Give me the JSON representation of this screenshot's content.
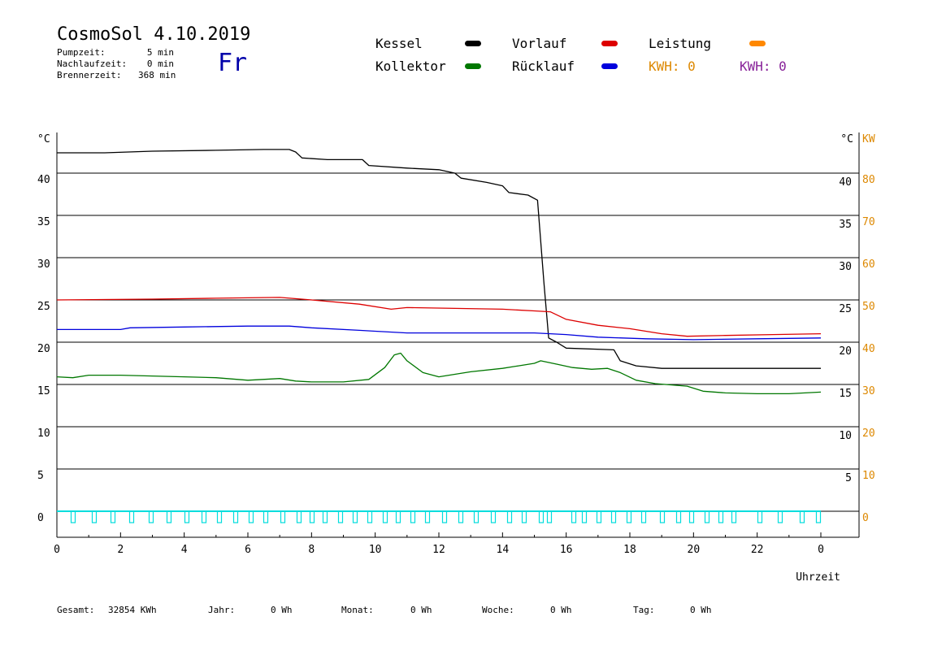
{
  "header": {
    "title": "CosmoSol 4.10.2019",
    "day": "Fr",
    "info": [
      {
        "label": "Pumpzeit:",
        "value": "5 min"
      },
      {
        "label": "Nachlaufzeit:",
        "value": "0 min"
      },
      {
        "label": "Brennerzeit:",
        "value": "368 min"
      }
    ]
  },
  "legend": {
    "kessel": "Kessel",
    "vorlauf": "Vorlauf",
    "leistung": "Leistung",
    "kollektor": "Kollektor",
    "ruecklauf": "Rücklauf",
    "kwh_1": "KWH: 0",
    "kwh_2": "KWH: 0"
  },
  "footer": {
    "gesamt_label": "Gesamt:",
    "gesamt_value": "32854 KWh",
    "jahr_label": "Jahr:",
    "jahr_value": "0 Wh",
    "monat_label": "Monat:",
    "monat_value": "0 Wh",
    "woche_label": "Woche:",
    "woche_value": "0 Wh",
    "tag_label": "Tag:",
    "tag_value": "0 Wh"
  },
  "colors": {
    "kessel": "#000000",
    "vorlauf": "#dd0000",
    "ruecklauf": "#0000dd",
    "kollektor": "#007700",
    "leistung": "#ff8800",
    "kwh_1": "#ff8800",
    "kwh_2": "#882299",
    "pump": "#00dddd",
    "kw_axis": "#dd8800"
  },
  "chart_data": {
    "type": "line",
    "xlabel": "Uhrzeit",
    "ylabel_left": "°C",
    "ylabel_right": "°C",
    "ylabel_right2": "KW",
    "xlim": [
      0,
      24
    ],
    "ylim": [
      0,
      45
    ],
    "ylim_kw": [
      0,
      90
    ],
    "grid": true,
    "x_ticks": [
      "0",
      "2",
      "4",
      "6",
      "8",
      "10",
      "12",
      "14",
      "16",
      "18",
      "20",
      "22",
      "0"
    ],
    "y_ticks": [
      "0",
      "5",
      "10",
      "15",
      "20",
      "25",
      "30",
      "35",
      "40"
    ],
    "y_ticks_right": [
      "5",
      "10",
      "15",
      "20",
      "25",
      "30",
      "35",
      "40"
    ],
    "y_ticks_kw": [
      "0",
      "10",
      "20",
      "30",
      "40",
      "50",
      "60",
      "70",
      "80"
    ],
    "series": [
      {
        "name": "Kessel",
        "color": "#000000",
        "points": [
          [
            0,
            42.4
          ],
          [
            1.5,
            42.4
          ],
          [
            3,
            42.6
          ],
          [
            5,
            42.7
          ],
          [
            6.5,
            42.8
          ],
          [
            7.3,
            42.8
          ],
          [
            7.5,
            42.5
          ],
          [
            7.7,
            41.8
          ],
          [
            8.5,
            41.6
          ],
          [
            9.6,
            41.6
          ],
          [
            9.8,
            40.9
          ],
          [
            11,
            40.6
          ],
          [
            12,
            40.4
          ],
          [
            12.5,
            40.0
          ],
          [
            12.7,
            39.4
          ],
          [
            13.5,
            38.9
          ],
          [
            14,
            38.5
          ],
          [
            14.2,
            37.7
          ],
          [
            14.8,
            37.4
          ],
          [
            15.1,
            36.8
          ],
          [
            15.3,
            27.0
          ],
          [
            15.45,
            20.5
          ],
          [
            15.7,
            20.0
          ],
          [
            16,
            19.3
          ],
          [
            17.5,
            19.1
          ],
          [
            17.7,
            17.8
          ],
          [
            18.2,
            17.2
          ],
          [
            19,
            16.9
          ],
          [
            24,
            16.9
          ]
        ]
      },
      {
        "name": "Vorlauf",
        "color": "#dd0000",
        "points": [
          [
            0,
            25.0
          ],
          [
            3,
            25.1
          ],
          [
            5,
            25.2
          ],
          [
            7,
            25.3
          ],
          [
            8,
            25.0
          ],
          [
            9.5,
            24.5
          ],
          [
            10.5,
            23.9
          ],
          [
            11,
            24.1
          ],
          [
            12.5,
            24.0
          ],
          [
            14,
            23.9
          ],
          [
            15,
            23.7
          ],
          [
            15.5,
            23.6
          ],
          [
            16,
            22.7
          ],
          [
            17,
            22.0
          ],
          [
            18,
            21.6
          ],
          [
            19,
            21.0
          ],
          [
            19.8,
            20.7
          ],
          [
            21,
            20.8
          ],
          [
            22.5,
            20.9
          ],
          [
            24,
            21.0
          ]
        ]
      },
      {
        "name": "Rücklauf",
        "color": "#0000dd",
        "points": [
          [
            0,
            21.5
          ],
          [
            2,
            21.5
          ],
          [
            2.3,
            21.7
          ],
          [
            4,
            21.8
          ],
          [
            6,
            21.9
          ],
          [
            7.3,
            21.9
          ],
          [
            8,
            21.7
          ],
          [
            9.5,
            21.4
          ],
          [
            10,
            21.3
          ],
          [
            11,
            21.1
          ],
          [
            13,
            21.1
          ],
          [
            15,
            21.1
          ],
          [
            16,
            20.9
          ],
          [
            17,
            20.6
          ],
          [
            18.5,
            20.4
          ],
          [
            20,
            20.3
          ],
          [
            22,
            20.4
          ],
          [
            24,
            20.5
          ]
        ]
      },
      {
        "name": "Kollektor",
        "color": "#007700",
        "points": [
          [
            0,
            15.9
          ],
          [
            0.5,
            15.8
          ],
          [
            1,
            16.1
          ],
          [
            2,
            16.1
          ],
          [
            3,
            16.0
          ],
          [
            4,
            15.9
          ],
          [
            5,
            15.8
          ],
          [
            6,
            15.5
          ],
          [
            7,
            15.7
          ],
          [
            7.5,
            15.4
          ],
          [
            8,
            15.3
          ],
          [
            9,
            15.3
          ],
          [
            9.8,
            15.6
          ],
          [
            10.3,
            17.0
          ],
          [
            10.6,
            18.5
          ],
          [
            10.8,
            18.7
          ],
          [
            11,
            17.8
          ],
          [
            11.5,
            16.4
          ],
          [
            12,
            15.9
          ],
          [
            12.5,
            16.2
          ],
          [
            13,
            16.5
          ],
          [
            14,
            16.9
          ],
          [
            14.5,
            17.2
          ],
          [
            15,
            17.5
          ],
          [
            15.2,
            17.8
          ],
          [
            15.7,
            17.4
          ],
          [
            16.2,
            17.0
          ],
          [
            16.8,
            16.8
          ],
          [
            17.3,
            16.9
          ],
          [
            17.7,
            16.4
          ],
          [
            18.2,
            15.5
          ],
          [
            18.8,
            15.1
          ],
          [
            19.8,
            14.8
          ],
          [
            20.3,
            14.2
          ],
          [
            21,
            14.0
          ],
          [
            22,
            13.9
          ],
          [
            23,
            13.9
          ],
          [
            24,
            14.1
          ]
        ]
      }
    ]
  }
}
